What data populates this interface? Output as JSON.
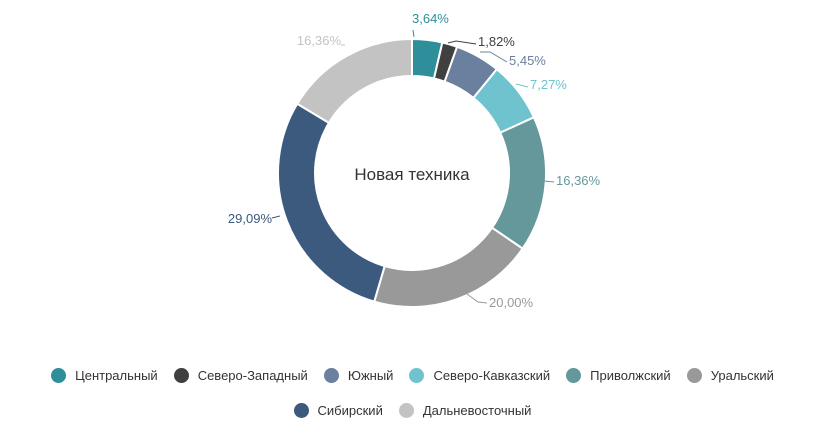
{
  "chart_data": {
    "type": "pie",
    "style": "donut",
    "center_title": "Новая техника",
    "legend_position": "bottom",
    "slices": [
      {
        "name": "Центральный",
        "value": 3.64,
        "label": "3,64%",
        "color": "#2e8f9a"
      },
      {
        "name": "Северо-Западный",
        "value": 1.82,
        "label": "1,82%",
        "color": "#404040"
      },
      {
        "name": "Южный",
        "value": 5.45,
        "label": "5,45%",
        "color": "#6b7f9e"
      },
      {
        "name": "Северо-Кавказский",
        "value": 7.27,
        "label": "7,27%",
        "color": "#6ec3cf"
      },
      {
        "name": "Приволжский",
        "value": 16.36,
        "label": "16,36%",
        "color": "#65989b"
      },
      {
        "name": "Уральский",
        "value": 20.0,
        "label": "20,00%",
        "color": "#999999"
      },
      {
        "name": "Сибирский",
        "value": 29.09,
        "label": "29,09%",
        "color": "#3b5a7d"
      },
      {
        "name": "Дальневосточный",
        "value": 16.36,
        "label": "16,36%",
        "color": "#c3c3c3"
      }
    ]
  }
}
